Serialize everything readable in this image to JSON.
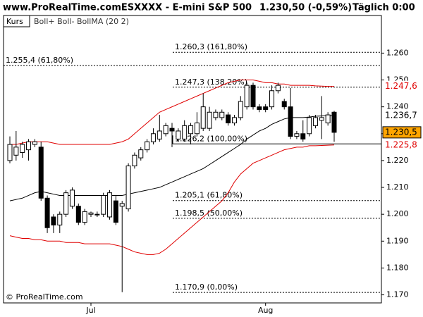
{
  "chart_data": {
    "type": "candlestick",
    "title": "www.ProRealTime.comESXXXX - E-mini S&P 500",
    "last_price": "1.230,50 (-0,59%)",
    "period": "Täglich 0:00",
    "legend": {
      "price": "Kurs",
      "indicator": "Boll+ Boll- BollMA (20 2)"
    },
    "copyright": "© ProRealTime.com",
    "categories": [
      null,
      null,
      null,
      null,
      null,
      null,
      null,
      null,
      null,
      null,
      null,
      null,
      null,
      "Jul",
      null,
      null,
      null,
      null,
      null,
      null,
      null,
      null,
      null,
      null,
      null,
      null,
      null,
      null,
      null,
      null,
      null,
      null,
      null,
      null,
      null,
      null,
      null,
      null,
      null,
      null,
      null,
      "Aug",
      null,
      null,
      null,
      null,
      null,
      null,
      null,
      null,
      null,
      null,
      null
    ],
    "open": [
      1220,
      1222,
      1223,
      1224,
      1226,
      1225,
      1206,
      1199,
      1196,
      1200,
      1203,
      1203,
      1197,
      1200,
      1200,
      1200,
      1199,
      1205,
      1203,
      1202,
      1218,
      1221,
      1224,
      1227,
      1228,
      1230,
      1232,
      1228,
      1228,
      1230,
      1230,
      1232,
      1232,
      1236,
      1236,
      1237,
      1234,
      1236,
      1240,
      1248,
      1240,
      1240,
      1240,
      1246,
      1242,
      1240,
      1229,
      1230,
      1230,
      1233,
      1235,
      1234,
      1238
    ],
    "high": [
      1229,
      1231,
      1227,
      1228,
      1228,
      1227,
      1207,
      1200,
      1201,
      1209,
      1210,
      1204,
      1202,
      1201,
      1201,
      1208,
      1209,
      1207,
      1205,
      1219,
      1223,
      1225,
      1228,
      1232,
      1237,
      1234,
      1234,
      1232,
      1235,
      1234,
      1238,
      1245,
      1240,
      1239,
      1239,
      1238,
      1237,
      1244,
      1249,
      1249,
      1241,
      1241,
      1248,
      1249,
      1243,
      1247,
      1231,
      1235,
      1237,
      1237,
      1244,
      1238,
      1238.5
    ],
    "low": [
      1219,
      1220,
      1221,
      1220,
      1225,
      1205,
      1193,
      1193,
      1193,
      1199,
      1202,
      1196,
      1196,
      1199,
      1199,
      1199,
      1198,
      1196,
      1171,
      1201,
      1217,
      1220,
      1223,
      1226,
      1227,
      1229,
      1225,
      1227,
      1227,
      1226,
      1229,
      1231,
      1231,
      1235,
      1235,
      1233,
      1233,
      1235,
      1239,
      1239,
      1238,
      1238,
      1239,
      1245,
      1239,
      1228,
      1228,
      1227,
      1229,
      1232,
      1228,
      1233,
      1227
    ],
    "close": [
      1226,
      1225,
      1226,
      1227,
      1227,
      1206,
      1195,
      1196,
      1200,
      1208,
      1209,
      1197,
      1201,
      1200.5,
      1200,
      1207,
      1208,
      1197,
      1204,
      1218,
      1222,
      1224,
      1227,
      1230,
      1231,
      1233,
      1231,
      1231,
      1233,
      1233,
      1234,
      1240,
      1238,
      1238,
      1238,
      1234,
      1236,
      1242,
      1248,
      1240,
      1239,
      1239,
      1246,
      1248,
      1240,
      1229,
      1230,
      1228,
      1236,
      1236,
      1236,
      1237,
      1230.5
    ],
    "series": [
      {
        "name": "Boll+",
        "color": "#e00000",
        "values": [
          1226,
          1226,
          1226.5,
          1227,
          1227,
          1227,
          1227,
          1226.5,
          1226,
          1226,
          1226,
          1226,
          1226,
          1226,
          1226,
          1226,
          1226,
          1226.5,
          1227,
          1228,
          1230,
          1232,
          1234,
          1236,
          1238,
          1239,
          1240,
          1241,
          1242,
          1243,
          1244,
          1245,
          1246,
          1247,
          1248,
          1249,
          1249.5,
          1250,
          1250,
          1250,
          1249.5,
          1249,
          1249,
          1248.5,
          1248.5,
          1248,
          1248,
          1248,
          1248,
          1247.8,
          1247.7,
          1247.6,
          1247.6
        ]
      },
      {
        "name": "Boll-",
        "color": "#e00000",
        "values": [
          1192,
          1191.5,
          1191,
          1191,
          1190.5,
          1190.5,
          1190,
          1190,
          1190,
          1189.5,
          1189.5,
          1189.5,
          1189,
          1189,
          1189,
          1189,
          1189,
          1188.5,
          1188,
          1187,
          1186,
          1185.5,
          1185,
          1185,
          1185.5,
          1187,
          1189,
          1191,
          1193,
          1195,
          1197,
          1199,
          1201,
          1203,
          1205,
          1208,
          1212,
          1215,
          1217,
          1219,
          1220,
          1221,
          1222,
          1223,
          1224,
          1224.5,
          1225,
          1225,
          1225.5,
          1225.5,
          1225.6,
          1225.7,
          1225.8
        ]
      },
      {
        "name": "BollMA",
        "color": "#000000",
        "values": [
          1205,
          1205.5,
          1206,
          1207,
          1208,
          1208.5,
          1208,
          1207.5,
          1207,
          1207,
          1207,
          1207,
          1207,
          1207,
          1207,
          1207,
          1207,
          1207,
          1207,
          1207.5,
          1208,
          1208.5,
          1209,
          1209.5,
          1210,
          1211,
          1212,
          1213,
          1214,
          1215,
          1216,
          1217,
          1218.5,
          1220,
          1221.5,
          1223,
          1224.5,
          1226,
          1228,
          1229.5,
          1231,
          1232,
          1233.5,
          1234.5,
          1235.5,
          1236,
          1236,
          1236,
          1236.2,
          1236.5,
          1236.6,
          1236.7,
          1236.7
        ]
      }
    ],
    "ylim": [
      1167,
      1274
    ],
    "yticks": [
      {
        "value": 1170,
        "label": "1.170"
      },
      {
        "value": 1180,
        "label": "1.180"
      },
      {
        "value": 1190,
        "label": "1.190"
      },
      {
        "value": 1200,
        "label": "1.200"
      },
      {
        "value": 1210,
        "label": "1.210"
      },
      {
        "value": 1220,
        "label": "1.220"
      },
      {
        "value": 1230,
        "label": "1.230"
      },
      {
        "value": 1240,
        "label": "1.240"
      },
      {
        "value": 1250,
        "label": "1.250"
      },
      {
        "value": 1260,
        "label": "1.260"
      }
    ],
    "fib_levels": [
      {
        "value": 1260.3,
        "label": "1.260,3 (161,80%)"
      },
      {
        "value": 1255.4,
        "label": "1.255,4 (61,80%)"
      },
      {
        "value": 1247.3,
        "label": "1.247,3 (138,20%)"
      },
      {
        "value": 1226.2,
        "label": "1.226,2 (100,00%)"
      },
      {
        "value": 1205.1,
        "label": "1.205,1 (61,80%)"
      },
      {
        "value": 1198.5,
        "label": "1.198,5 (50,00%)"
      },
      {
        "value": 1170.9,
        "label": "1.170,9 (0,00%)"
      }
    ],
    "price_labels": [
      {
        "value": 1247.6,
        "label": "1.247,6",
        "color": "#e00000",
        "background": "#ffffff"
      },
      {
        "value": 1236.7,
        "label": "1.236,7",
        "color": "#000000",
        "background": "#ffffff"
      },
      {
        "value": 1230.5,
        "label": "1.230,5",
        "color": "#000000",
        "background": "#ffa500"
      },
      {
        "value": 1225.8,
        "label": "1.225,8",
        "color": "#e00000",
        "background": "#ffffff"
      }
    ]
  }
}
